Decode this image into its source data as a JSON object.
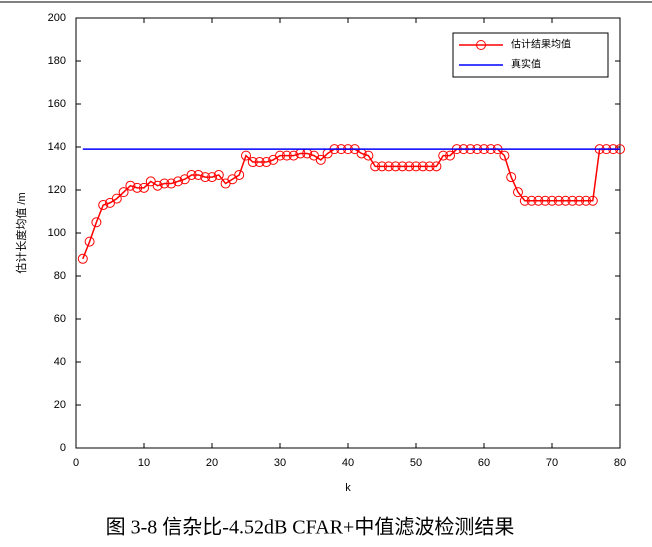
{
  "chart_data": {
    "type": "line",
    "xlabel": "k",
    "ylabel": "估计长度均值 /m",
    "caption": "图 3-8  信杂比-4.52dB CFAR+中值滤波检测结果",
    "x": [
      1,
      2,
      3,
      4,
      5,
      6,
      7,
      8,
      9,
      10,
      11,
      12,
      13,
      14,
      15,
      16,
      17,
      18,
      19,
      20,
      21,
      22,
      23,
      24,
      25,
      26,
      27,
      28,
      29,
      30,
      31,
      32,
      33,
      34,
      35,
      36,
      37,
      38,
      39,
      40,
      41,
      42,
      43,
      44,
      45,
      46,
      47,
      48,
      49,
      50,
      51,
      52,
      53,
      54,
      55,
      56,
      57,
      58,
      59,
      60,
      61,
      62,
      63,
      64,
      65,
      66,
      67,
      68,
      69,
      70,
      71,
      72,
      73,
      74,
      75,
      76,
      77,
      78,
      79,
      80
    ],
    "series": [
      {
        "name": "估计结果均值",
        "color": "#ff0000",
        "marker": "circle",
        "values": [
          88,
          96,
          105,
          113,
          114,
          116,
          119,
          122,
          121,
          121,
          124,
          122,
          123,
          123,
          124,
          125,
          127,
          127,
          126,
          126,
          127,
          123,
          125,
          127,
          136,
          133,
          133,
          133,
          134,
          136,
          136,
          136,
          137,
          137,
          136,
          134,
          137,
          139,
          139,
          139,
          139,
          137,
          136,
          131,
          131,
          131,
          131,
          131,
          131,
          131,
          131,
          131,
          131,
          136,
          136,
          139,
          139,
          139,
          139,
          139,
          139,
          139,
          136,
          126,
          119,
          115,
          115,
          115,
          115,
          115,
          115,
          115,
          115,
          115,
          115,
          115,
          139,
          139,
          139,
          139
        ]
      },
      {
        "name": "真实值",
        "color": "#0000ff",
        "marker": "none",
        "values": [
          139,
          139,
          139,
          139,
          139,
          139,
          139,
          139,
          139,
          139,
          139,
          139,
          139,
          139,
          139,
          139,
          139,
          139,
          139,
          139,
          139,
          139,
          139,
          139,
          139,
          139,
          139,
          139,
          139,
          139,
          139,
          139,
          139,
          139,
          139,
          139,
          139,
          139,
          139,
          139,
          139,
          139,
          139,
          139,
          139,
          139,
          139,
          139,
          139,
          139,
          139,
          139,
          139,
          139,
          139,
          139,
          139,
          139,
          139,
          139,
          139,
          139,
          139,
          139,
          139,
          139,
          139,
          139,
          139,
          139,
          139,
          139,
          139,
          139,
          139,
          139,
          139,
          139,
          139,
          139
        ]
      }
    ],
    "xlim": [
      0,
      80
    ],
    "xticks": [
      0,
      10,
      20,
      30,
      40,
      50,
      60,
      70,
      80
    ],
    "ylim": [
      0,
      200
    ],
    "yticks": [
      0,
      20,
      40,
      60,
      80,
      100,
      120,
      140,
      160,
      180,
      200
    ],
    "legend": "upper right",
    "grid": false
  }
}
